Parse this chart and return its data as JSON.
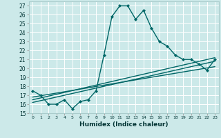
{
  "xlabel": "Humidex (Indice chaleur)",
  "background_color": "#cce9e9",
  "grid_color": "#aacccc",
  "line_color": "#006666",
  "xlim": [
    -0.5,
    23.5
  ],
  "ylim": [
    15,
    27.5
  ],
  "yticks": [
    15,
    16,
    17,
    18,
    19,
    20,
    21,
    22,
    23,
    24,
    25,
    26,
    27
  ],
  "xticks": [
    0,
    1,
    2,
    3,
    4,
    5,
    6,
    7,
    8,
    9,
    10,
    11,
    12,
    13,
    14,
    15,
    16,
    17,
    18,
    19,
    20,
    21,
    22,
    23
  ],
  "main_curve_x": [
    0,
    1,
    2,
    3,
    4,
    5,
    6,
    7,
    8,
    9,
    10,
    11,
    12,
    13,
    14,
    15,
    16,
    17,
    18,
    19,
    20,
    21,
    22,
    23
  ],
  "main_curve_y": [
    17.5,
    17.0,
    16.0,
    16.0,
    16.5,
    15.5,
    16.3,
    16.5,
    17.5,
    21.5,
    25.8,
    27.0,
    27.0,
    25.5,
    26.5,
    24.5,
    23.0,
    22.5,
    21.5,
    21.0,
    21.0,
    20.5,
    19.8,
    21.0
  ],
  "line1_x": [
    0,
    23
  ],
  "line1_y": [
    16.2,
    20.8
  ],
  "line2_x": [
    0,
    23
  ],
  "line2_y": [
    16.8,
    20.2
  ],
  "line3_x": [
    0,
    23
  ],
  "line3_y": [
    16.5,
    21.2
  ]
}
